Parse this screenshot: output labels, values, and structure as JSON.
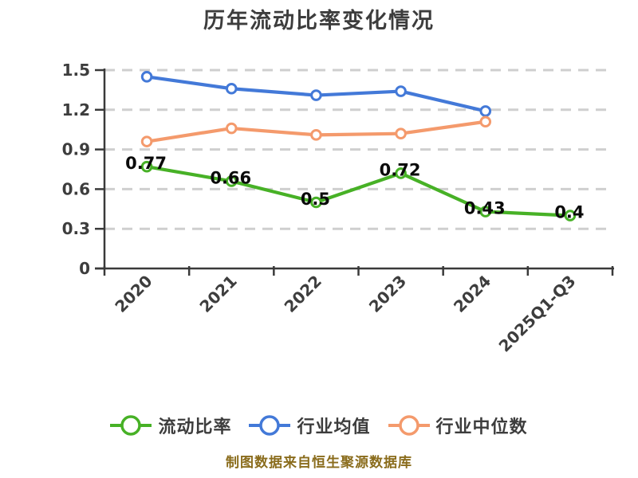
{
  "title": "历年流动比率变化情况",
  "footer": "制图数据来自恒生聚源数据库",
  "colors": {
    "background": "#ffffff",
    "title_text": "#3d3d3d",
    "axis": "#3a3a3a",
    "gridline": "#cfcfcf",
    "tick_label": "#3d3d3d",
    "data_label": "#0a0a0a",
    "legend_text": "#3d3d3d",
    "footer_text": "#8a6c1c",
    "series_green": "#47b126",
    "series_blue": "#4379d8",
    "series_orange": "#f49a6c"
  },
  "chart_data": {
    "type": "line",
    "title": "历年流动比率变化情况",
    "categories": [
      "2020",
      "2021",
      "2022",
      "2023",
      "2024",
      "2025Q1-Q3"
    ],
    "series": [
      {
        "key": "current-ratio",
        "name": "流动比率",
        "color": "#47b126",
        "values": [
          0.77,
          0.66,
          0.5,
          0.72,
          0.43,
          0.4
        ],
        "point_labels": [
          "0.77",
          "0.66",
          "0.5",
          "0.72",
          "0.43",
          "0.4"
        ]
      },
      {
        "key": "industry-average",
        "name": "行业均值",
        "color": "#4379d8",
        "values": [
          1.45,
          1.36,
          1.31,
          1.34,
          1.19,
          null
        ],
        "point_labels": null
      },
      {
        "key": "industry-median",
        "name": "行业中位数",
        "color": "#f49a6c",
        "values": [
          0.96,
          1.06,
          1.01,
          1.02,
          1.11,
          null
        ],
        "point_labels": null
      }
    ],
    "ylim": [
      0,
      1.5
    ],
    "yticks": [
      0,
      0.3,
      0.6,
      0.9,
      1.2,
      1.5
    ],
    "ytick_labels": [
      "0",
      "0.3",
      "0.6",
      "0.9",
      "1.2",
      "1.5"
    ],
    "grid": "horizontal-dashed",
    "legend_position": "bottom",
    "marker": "circle-white-fill"
  }
}
